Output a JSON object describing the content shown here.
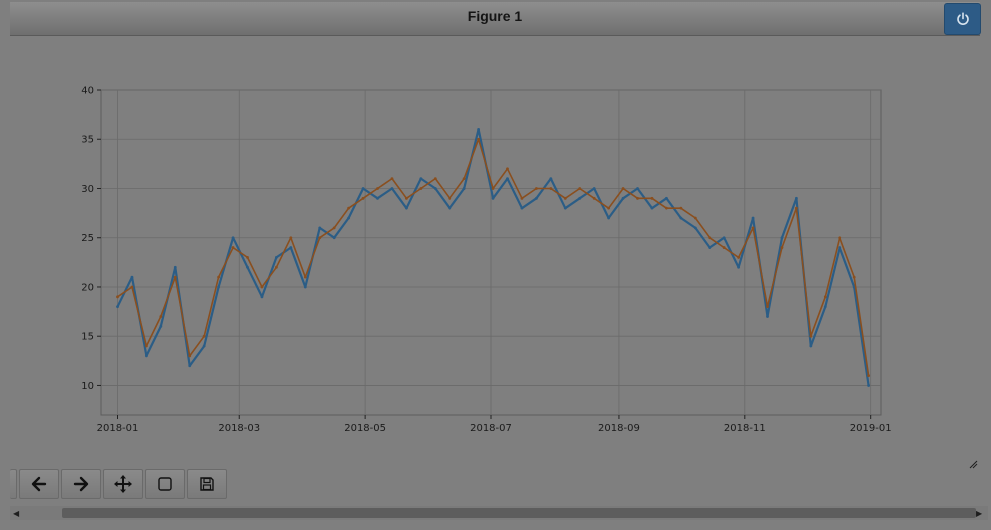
{
  "window": {
    "title": "Figure 1"
  },
  "toolbar": {
    "buttons": [
      {
        "name": "home",
        "icon": "home-icon"
      },
      {
        "name": "back",
        "icon": "arrow-left-icon"
      },
      {
        "name": "forward",
        "icon": "arrow-right-icon"
      },
      {
        "name": "pan",
        "icon": "move-icon"
      },
      {
        "name": "zoom",
        "icon": "zoom-rect-icon"
      },
      {
        "name": "save",
        "icon": "floppy-disk-icon"
      }
    ]
  },
  "colors": {
    "series_blue": "#2b5d86",
    "series_orange": "#8a4f1f",
    "grid": "#6a6a6a",
    "accent": "#2d5b86"
  },
  "chart_data": {
    "type": "line",
    "title": "",
    "xlabel": "",
    "ylabel": "",
    "xlim": [
      "2017-12-24",
      "2019-01-06"
    ],
    "ylim": [
      7,
      40
    ],
    "grid": true,
    "xticks": [
      "2018-01",
      "2018-03",
      "2018-05",
      "2018-07",
      "2018-09",
      "2018-11",
      "2019-01"
    ],
    "yticks": [
      10,
      15,
      20,
      25,
      30,
      35,
      40
    ],
    "series": [
      {
        "x": [
          "2018-01-01",
          "2018-01-08",
          "2018-01-15",
          "2018-01-22",
          "2018-01-29",
          "2018-02-05",
          "2018-02-12",
          "2018-02-19",
          "2018-02-26",
          "2018-03-05",
          "2018-03-12",
          "2018-03-19",
          "2018-03-26",
          "2018-04-02",
          "2018-04-09",
          "2018-04-16",
          "2018-04-23",
          "2018-04-30",
          "2018-05-07",
          "2018-05-14",
          "2018-05-21",
          "2018-05-28",
          "2018-06-04",
          "2018-06-11",
          "2018-06-18",
          "2018-06-25",
          "2018-07-02",
          "2018-07-09",
          "2018-07-16",
          "2018-07-23",
          "2018-07-30",
          "2018-08-06",
          "2018-08-13",
          "2018-08-20",
          "2018-08-27",
          "2018-09-03",
          "2018-09-10",
          "2018-09-17",
          "2018-09-24",
          "2018-10-01",
          "2018-10-08",
          "2018-10-15",
          "2018-10-22",
          "2018-10-29",
          "2018-11-05",
          "2018-11-12",
          "2018-11-19",
          "2018-11-26",
          "2018-12-03",
          "2018-12-10",
          "2018-12-17",
          "2018-12-24",
          "2018-12-31"
        ],
        "y": [
          18,
          21,
          13,
          16,
          22,
          12,
          14,
          20,
          25,
          22,
          19,
          23,
          24,
          20,
          26,
          25,
          27,
          30,
          29,
          30,
          28,
          31,
          30,
          28,
          30,
          36,
          29,
          31,
          28,
          29,
          31,
          28,
          29,
          30,
          27,
          29,
          30,
          28,
          29,
          27,
          26,
          24,
          25,
          22,
          27,
          17,
          25,
          29,
          14,
          18,
          24,
          20,
          10
        ]
      },
      {
        "x": [
          "2018-01-01",
          "2018-01-08",
          "2018-01-15",
          "2018-01-22",
          "2018-01-29",
          "2018-02-05",
          "2018-02-12",
          "2018-02-19",
          "2018-02-26",
          "2018-03-05",
          "2018-03-12",
          "2018-03-19",
          "2018-03-26",
          "2018-04-02",
          "2018-04-09",
          "2018-04-16",
          "2018-04-23",
          "2018-04-30",
          "2018-05-07",
          "2018-05-14",
          "2018-05-21",
          "2018-05-28",
          "2018-06-04",
          "2018-06-11",
          "2018-06-18",
          "2018-06-25",
          "2018-07-02",
          "2018-07-09",
          "2018-07-16",
          "2018-07-23",
          "2018-07-30",
          "2018-08-06",
          "2018-08-13",
          "2018-08-20",
          "2018-08-27",
          "2018-09-03",
          "2018-09-10",
          "2018-09-17",
          "2018-09-24",
          "2018-10-01",
          "2018-10-08",
          "2018-10-15",
          "2018-10-22",
          "2018-10-29",
          "2018-11-05",
          "2018-11-12",
          "2018-11-19",
          "2018-11-26",
          "2018-12-03",
          "2018-12-10",
          "2018-12-17",
          "2018-12-24",
          "2018-12-31"
        ],
        "y": [
          19,
          20,
          14,
          17,
          21,
          13,
          15,
          21,
          24,
          23,
          20,
          22,
          25,
          21,
          25,
          26,
          28,
          29,
          30,
          31,
          29,
          30,
          31,
          29,
          31,
          35,
          30,
          32,
          29,
          30,
          30,
          29,
          30,
          29,
          28,
          30,
          29,
          29,
          28,
          28,
          27,
          25,
          24,
          23,
          26,
          18,
          24,
          28,
          15,
          19,
          25,
          21,
          11
        ]
      }
    ]
  }
}
